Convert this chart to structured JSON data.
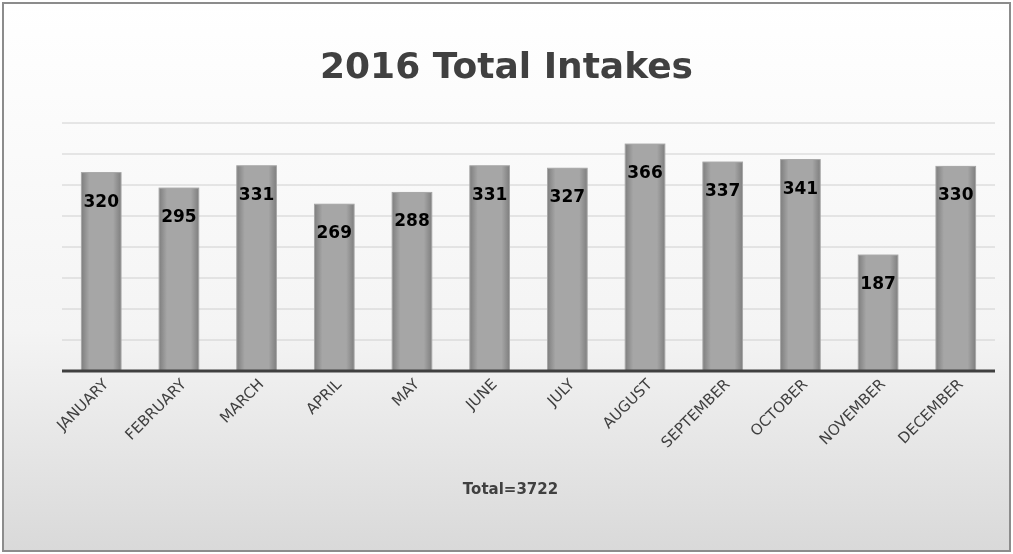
{
  "chart_data": {
    "type": "bar",
    "title": "2016 Total Intakes",
    "categories": [
      "JANUARY",
      "FEBRUARY",
      "MARCH",
      "APRIL",
      "MAY",
      "JUNE",
      "JULY",
      "AUGUST",
      "SEPTEMBER",
      "OCTOBER",
      "NOVEMBER",
      "DECEMBER"
    ],
    "values": [
      320,
      295,
      331,
      269,
      288,
      331,
      327,
      366,
      337,
      341,
      187,
      330
    ],
    "color": "#a6a6a6",
    "ylim": [
      0,
      400
    ],
    "yticks": [
      {
        "value": 0,
        "label": null
      },
      {
        "value": 50,
        "label": null
      },
      {
        "value": 100,
        "label": null
      },
      {
        "value": 150,
        "label": null
      },
      {
        "value": 200,
        "label": null
      },
      {
        "value": 250,
        "label": null
      },
      {
        "value": 300,
        "label": null
      },
      {
        "value": 350,
        "label": null
      },
      {
        "value": 400,
        "label": null
      }
    ],
    "tick_labels": "x",
    "grid": "y",
    "data_labels": true,
    "annotations": [
      "Total=3722"
    ]
  }
}
